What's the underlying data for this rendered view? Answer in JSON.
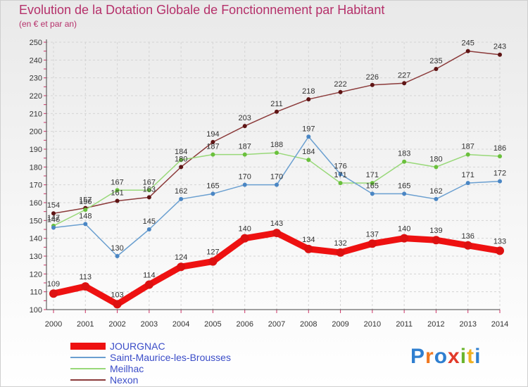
{
  "header": {
    "title": "Evolution de la Dotation Globale de Fonctionnement par Habitant",
    "subtitle": "(en € et par an)"
  },
  "brand": {
    "letters": [
      "P",
      "r",
      "o",
      "x",
      "i",
      "t",
      "i"
    ],
    "colors": [
      "#2f7fd0",
      "#f07820",
      "#2f7fd0",
      "#e23a2a",
      "#6ab52c",
      "#f0b020",
      "#2f7fd0"
    ]
  },
  "chart_data": {
    "type": "line",
    "title": "Evolution de la Dotation Globale de Fonctionnement par Habitant",
    "subtitle": "(en € et par an)",
    "xlabel": "",
    "ylabel": "",
    "ylim": [
      100,
      250
    ],
    "yticks": [
      100,
      110,
      120,
      130,
      140,
      150,
      160,
      170,
      180,
      190,
      200,
      210,
      220,
      230,
      240,
      250
    ],
    "grid": true,
    "legend_position": "bottom-left",
    "x": [
      "2000",
      "2001",
      "2002",
      "2003",
      "2004",
      "2005",
      "2006",
      "2007",
      "2008",
      "2009",
      "2010",
      "2011",
      "2012",
      "2013",
      "2014"
    ],
    "series": [
      {
        "name": "Nexon",
        "color": "#8b3a3a",
        "marker": "#5e1414",
        "values": [
          154,
          157,
          161,
          163,
          180,
          194,
          203,
          211,
          218,
          222,
          226,
          227,
          235,
          245,
          243
        ]
      },
      {
        "name": "Meilhac",
        "color": "#98d878",
        "marker": "#6ac03c",
        "values": [
          147,
          156,
          167,
          167,
          184,
          187,
          187,
          188,
          184,
          171,
          171,
          183,
          180,
          187,
          186
        ]
      },
      {
        "name": "Saint-Maurice-les-Brousses",
        "color": "#6a9fd0",
        "marker": "#4a86c4",
        "values": [
          146,
          148,
          130,
          145,
          162,
          165,
          170,
          170,
          197,
          176,
          165,
          165,
          162,
          171,
          172
        ]
      },
      {
        "name": "JOURGNAC",
        "color": "#ee1111",
        "marker": "#dd1111",
        "values": [
          109,
          113,
          103,
          114,
          124,
          127,
          140,
          143,
          134,
          132,
          137,
          140,
          139,
          136,
          133
        ]
      }
    ]
  }
}
